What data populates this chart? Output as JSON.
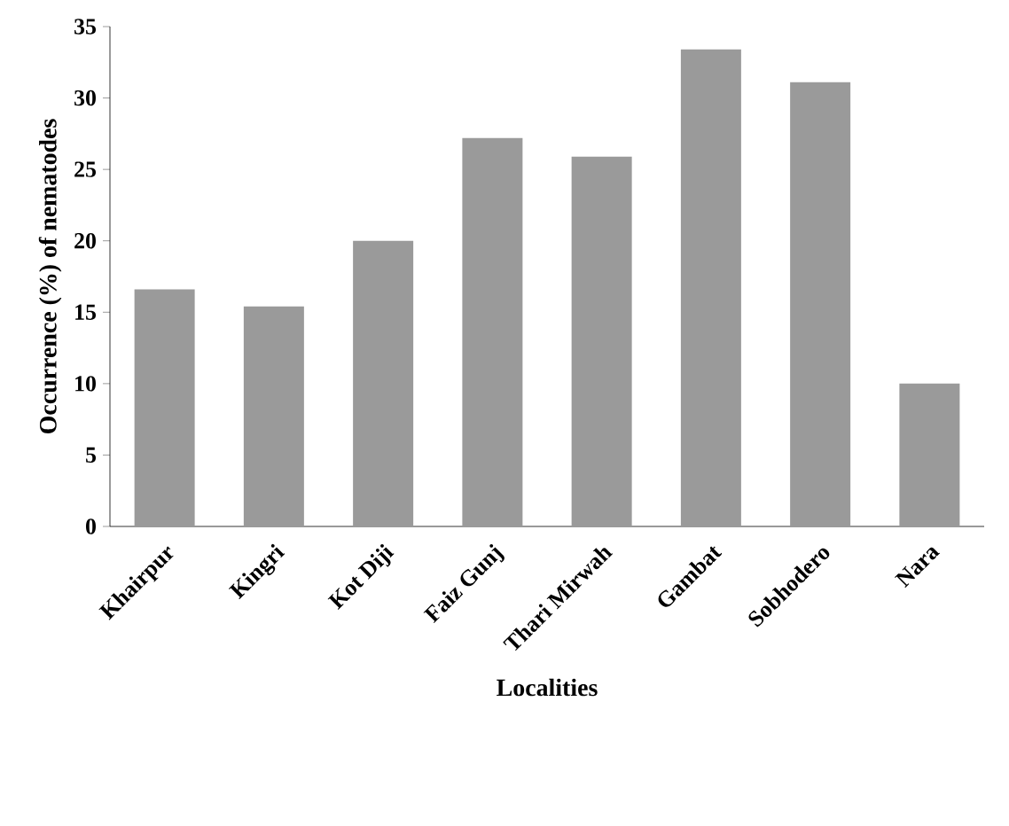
{
  "chart_data": {
    "type": "bar",
    "xlabel": "Localities",
    "ylabel": "Occurrence (%) of nematodes",
    "categories": [
      "Khairpur",
      "Kingri",
      "Kot Diji",
      "Faiz Gunj",
      "Thari Mirwah",
      "Gambat",
      "Sobhodero",
      "Nara"
    ],
    "values": [
      16.6,
      15.4,
      20,
      27.2,
      25.9,
      33.4,
      31.1,
      10
    ],
    "color": "#9a9a9a",
    "ylim": [
      0,
      35
    ],
    "yticks": [
      0,
      5,
      10,
      15,
      20,
      25,
      30,
      35
    ]
  }
}
